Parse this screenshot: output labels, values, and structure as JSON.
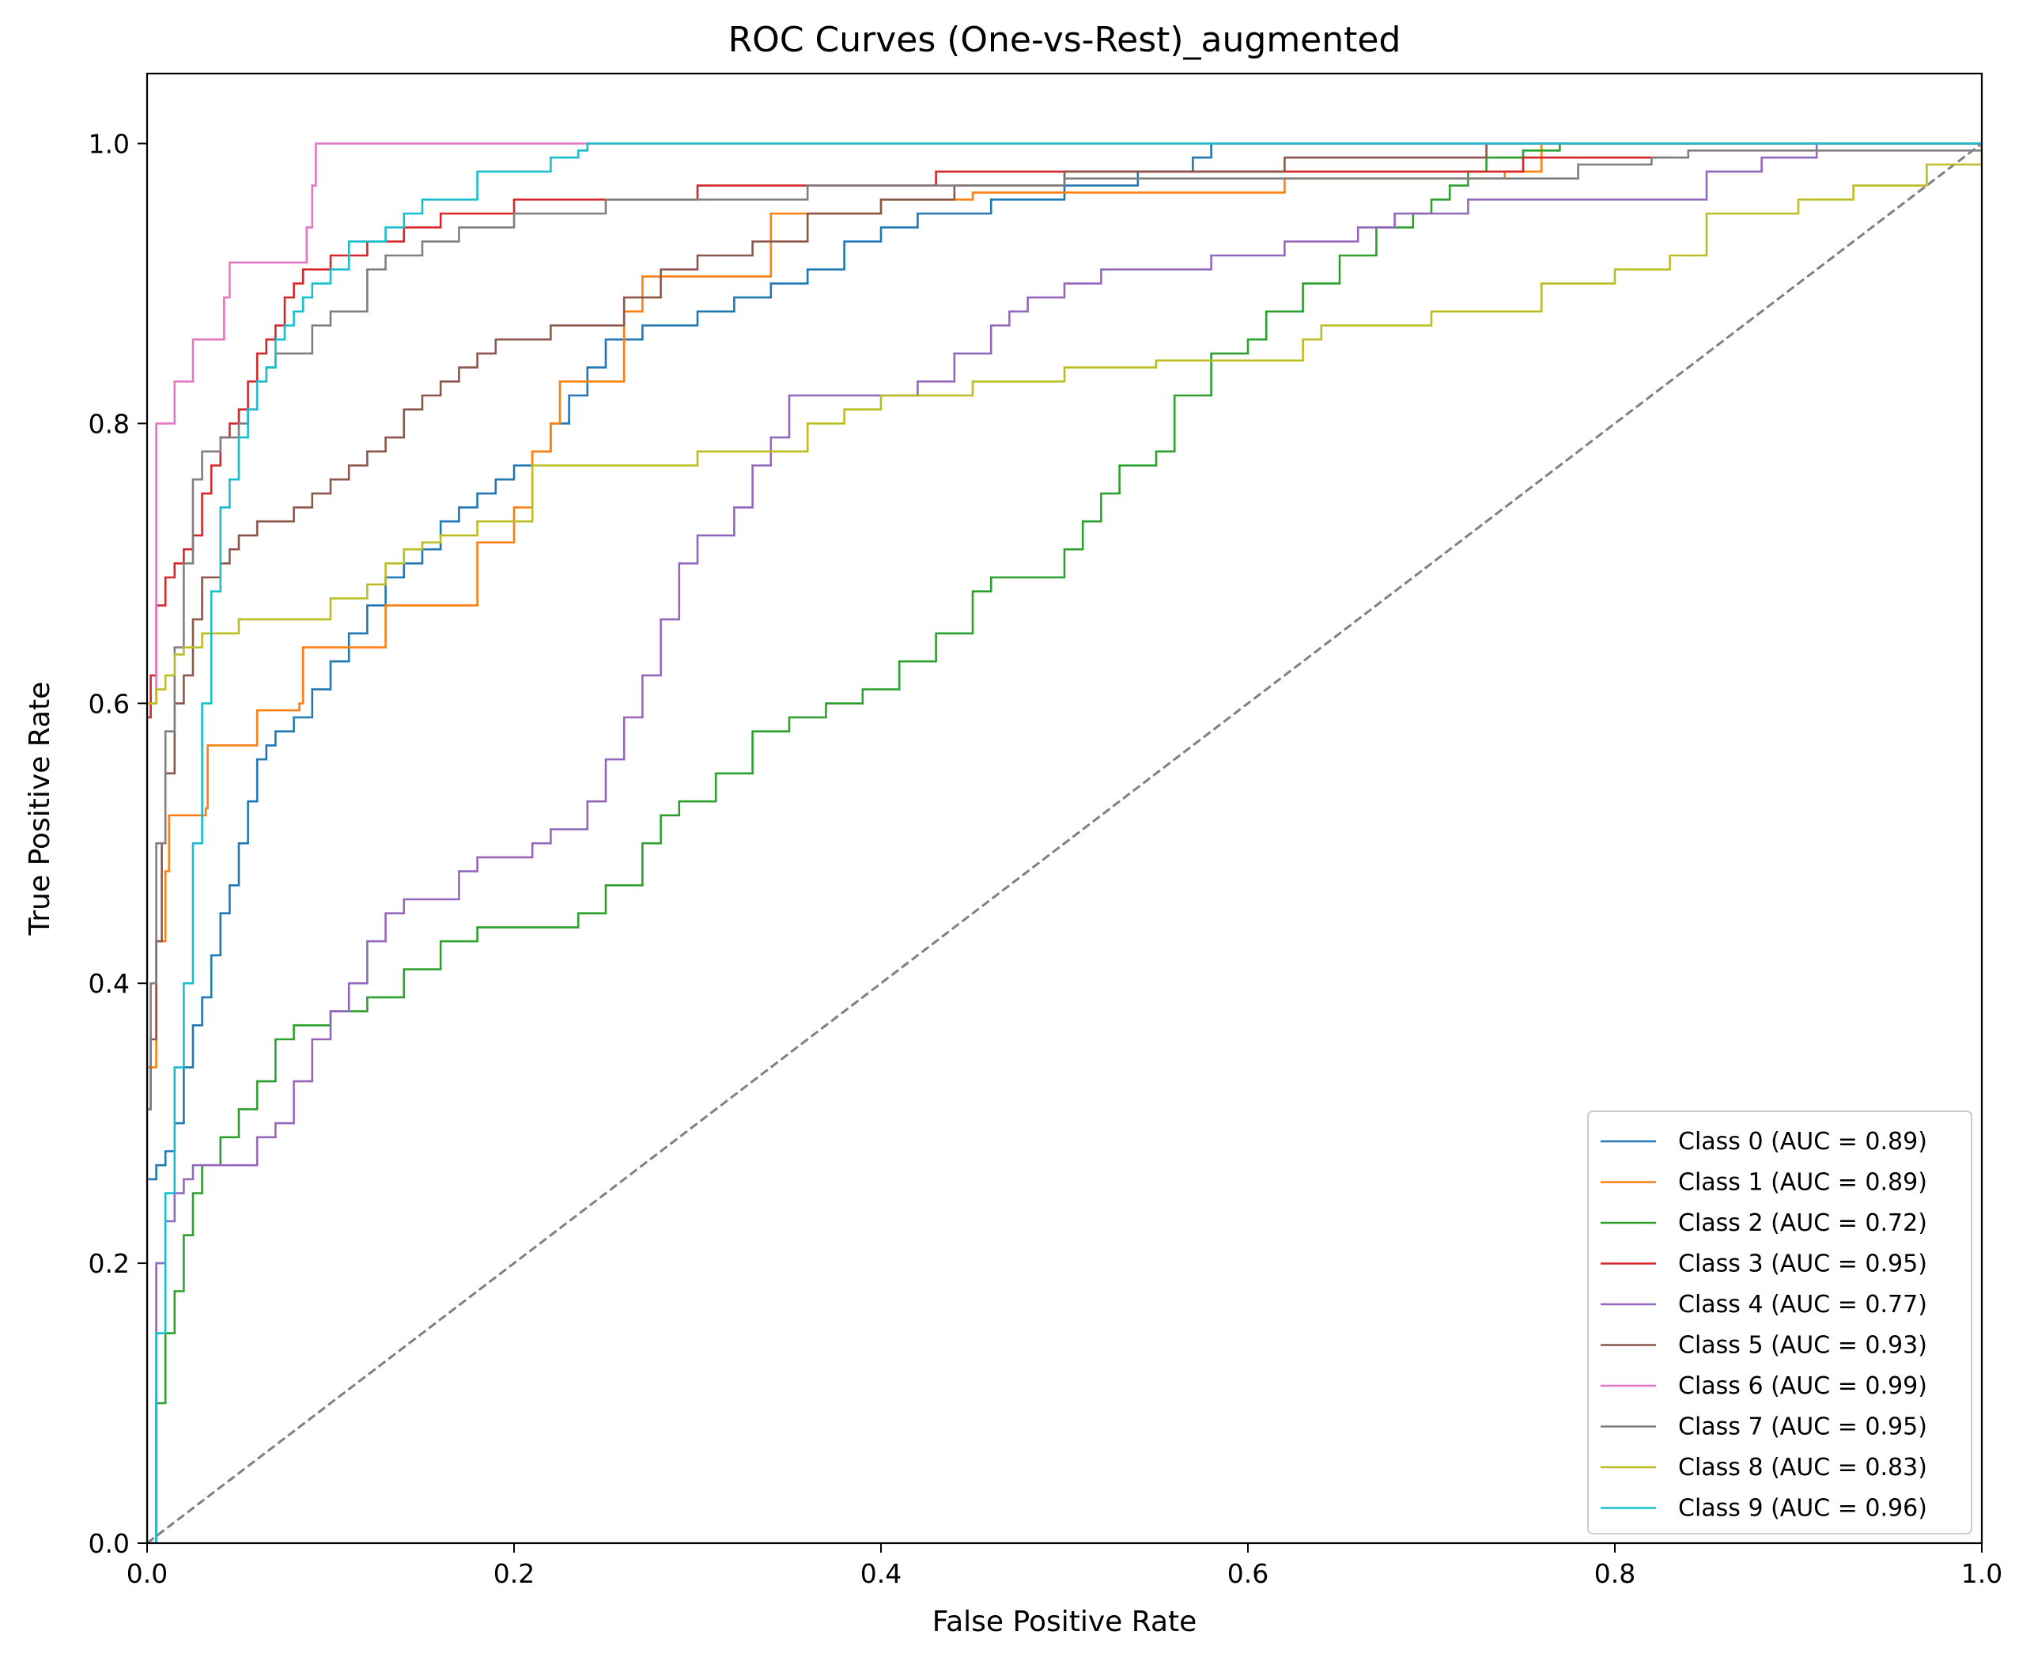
{
  "chart_data": {
    "type": "line",
    "title": "ROC Curves (One-vs-Rest)_augmented",
    "xlabel": "False Positive Rate",
    "ylabel": "True Positive Rate",
    "xlim": [
      0.0,
      1.0
    ],
    "ylim": [
      0.0,
      1.05
    ],
    "xticks": [
      "0.0",
      "0.2",
      "0.4",
      "0.6",
      "0.8",
      "1.0"
    ],
    "yticks": [
      "0.0",
      "0.2",
      "0.4",
      "0.6",
      "0.8",
      "1.0"
    ],
    "grid": false,
    "legend_position": "lower-right",
    "reference_line": {
      "x": [
        0,
        1
      ],
      "y": [
        0,
        1
      ],
      "color": "#808080",
      "style": "dashed"
    },
    "series": [
      {
        "name": "Class 0 (AUC = 0.89)",
        "color": "#1f77b4",
        "x": [
          0,
          0,
          0.005,
          0.01,
          0.015,
          0.02,
          0.025,
          0.03,
          0.035,
          0.04,
          0.045,
          0.05,
          0.055,
          0.06,
          0.065,
          0.07,
          0.08,
          0.09,
          0.1,
          0.11,
          0.12,
          0.13,
          0.14,
          0.15,
          0.16,
          0.17,
          0.18,
          0.19,
          0.2,
          0.21,
          0.22,
          0.23,
          0.24,
          0.25,
          0.26,
          0.27,
          0.28,
          0.3,
          0.32,
          0.34,
          0.36,
          0.38,
          0.4,
          0.42,
          0.44,
          0.46,
          0.5,
          0.54,
          0.57,
          0.58,
          1.0
        ],
        "y": [
          0,
          0.26,
          0.27,
          0.28,
          0.3,
          0.34,
          0.37,
          0.39,
          0.42,
          0.45,
          0.47,
          0.5,
          0.53,
          0.56,
          0.57,
          0.58,
          0.59,
          0.61,
          0.63,
          0.65,
          0.67,
          0.69,
          0.7,
          0.71,
          0.73,
          0.74,
          0.75,
          0.76,
          0.77,
          0.78,
          0.8,
          0.82,
          0.84,
          0.86,
          0.86,
          0.87,
          0.87,
          0.88,
          0.89,
          0.9,
          0.91,
          0.93,
          0.94,
          0.95,
          0.95,
          0.96,
          0.97,
          0.98,
          0.99,
          1.0,
          1.0
        ]
      },
      {
        "name": "Class 1 (AUC = 0.89)",
        "color": "#ff7f0e",
        "x": [
          0,
          0,
          0.005,
          0.01,
          0.012,
          0.015,
          0.032,
          0.033,
          0.055,
          0.06,
          0.083,
          0.085,
          0.13,
          0.13,
          0.175,
          0.18,
          0.2,
          0.21,
          0.22,
          0.225,
          0.26,
          0.27,
          0.33,
          0.34,
          0.4,
          0.45,
          0.61,
          0.62,
          0.74,
          0.76,
          1.0
        ],
        "y": [
          0,
          0.34,
          0.43,
          0.48,
          0.52,
          0.52,
          0.525,
          0.57,
          0.57,
          0.595,
          0.6,
          0.64,
          0.645,
          0.67,
          0.67,
          0.715,
          0.74,
          0.78,
          0.8,
          0.83,
          0.88,
          0.905,
          0.905,
          0.95,
          0.96,
          0.965,
          0.965,
          0.975,
          0.98,
          1.0,
          1.0
        ]
      },
      {
        "name": "Class 2 (AUC = 0.72)",
        "color": "#2ca02c",
        "x": [
          0,
          0.005,
          0.01,
          0.015,
          0.02,
          0.025,
          0.03,
          0.04,
          0.05,
          0.06,
          0.07,
          0.08,
          0.1,
          0.12,
          0.14,
          0.16,
          0.18,
          0.2,
          0.22,
          0.235,
          0.25,
          0.27,
          0.28,
          0.29,
          0.31,
          0.33,
          0.35,
          0.37,
          0.39,
          0.41,
          0.43,
          0.45,
          0.46,
          0.48,
          0.5,
          0.51,
          0.52,
          0.53,
          0.55,
          0.56,
          0.58,
          0.6,
          0.61,
          0.63,
          0.65,
          0.67,
          0.69,
          0.7,
          0.71,
          0.72,
          0.73,
          0.75,
          0.77,
          0.79,
          0.8,
          1.0
        ],
        "y": [
          0,
          0.1,
          0.15,
          0.18,
          0.22,
          0.25,
          0.27,
          0.29,
          0.31,
          0.33,
          0.36,
          0.37,
          0.38,
          0.39,
          0.41,
          0.43,
          0.44,
          0.44,
          0.44,
          0.45,
          0.47,
          0.5,
          0.52,
          0.53,
          0.55,
          0.58,
          0.59,
          0.6,
          0.61,
          0.63,
          0.65,
          0.68,
          0.69,
          0.69,
          0.71,
          0.73,
          0.75,
          0.77,
          0.78,
          0.82,
          0.85,
          0.86,
          0.88,
          0.9,
          0.92,
          0.94,
          0.95,
          0.96,
          0.97,
          0.98,
          0.99,
          0.995,
          1.0,
          1.0,
          1.0,
          1.0
        ]
      },
      {
        "name": "Class 3 (AUC = 0.95)",
        "color": "#d62728",
        "x": [
          0,
          0,
          0.002,
          0.005,
          0.01,
          0.015,
          0.02,
          0.025,
          0.03,
          0.035,
          0.04,
          0.045,
          0.05,
          0.055,
          0.06,
          0.065,
          0.07,
          0.075,
          0.08,
          0.085,
          0.09,
          0.1,
          0.11,
          0.12,
          0.14,
          0.16,
          0.18,
          0.2,
          0.22,
          0.25,
          0.3,
          0.36,
          0.43,
          0.51,
          0.63,
          0.75,
          0.82,
          0.83
        ],
        "y": [
          0,
          0.59,
          0.62,
          0.67,
          0.69,
          0.7,
          0.71,
          0.72,
          0.75,
          0.77,
          0.79,
          0.8,
          0.81,
          0.83,
          0.85,
          0.86,
          0.87,
          0.89,
          0.9,
          0.91,
          0.91,
          0.92,
          0.92,
          0.93,
          0.94,
          0.95,
          0.95,
          0.96,
          0.96,
          0.96,
          0.97,
          0.97,
          0.98,
          0.98,
          0.98,
          0.99,
          0.99,
          0.99
        ]
      },
      {
        "name": "Class 4 (AUC = 0.77)",
        "color": "#9467bd",
        "x": [
          0,
          0.005,
          0.01,
          0.015,
          0.02,
          0.025,
          0.055,
          0.06,
          0.07,
          0.08,
          0.09,
          0.1,
          0.11,
          0.12,
          0.13,
          0.14,
          0.15,
          0.17,
          0.18,
          0.2,
          0.21,
          0.22,
          0.24,
          0.25,
          0.26,
          0.27,
          0.28,
          0.29,
          0.3,
          0.31,
          0.32,
          0.33,
          0.34,
          0.35,
          0.36,
          0.37,
          0.4,
          0.42,
          0.44,
          0.46,
          0.47,
          0.48,
          0.5,
          0.52,
          0.54,
          0.58,
          0.6,
          0.62,
          0.64,
          0.66,
          0.68,
          0.7,
          0.72,
          0.76,
          0.82,
          0.85,
          0.88,
          0.9,
          0.91,
          1.0
        ],
        "y": [
          0,
          0.2,
          0.23,
          0.25,
          0.26,
          0.27,
          0.27,
          0.29,
          0.3,
          0.33,
          0.36,
          0.38,
          0.4,
          0.43,
          0.45,
          0.46,
          0.46,
          0.48,
          0.49,
          0.49,
          0.5,
          0.51,
          0.53,
          0.56,
          0.59,
          0.62,
          0.66,
          0.7,
          0.72,
          0.72,
          0.74,
          0.77,
          0.79,
          0.82,
          0.82,
          0.82,
          0.82,
          0.83,
          0.85,
          0.87,
          0.88,
          0.89,
          0.9,
          0.91,
          0.91,
          0.92,
          0.92,
          0.93,
          0.93,
          0.94,
          0.95,
          0.95,
          0.96,
          0.96,
          0.96,
          0.98,
          0.99,
          0.99,
          1.0,
          1.0
        ]
      },
      {
        "name": "Class 5 (AUC = 0.93)",
        "color": "#8c564b",
        "x": [
          0,
          0,
          0.002,
          0.005,
          0.008,
          0.01,
          0.015,
          0.02,
          0.025,
          0.03,
          0.035,
          0.04,
          0.045,
          0.05,
          0.06,
          0.07,
          0.08,
          0.09,
          0.1,
          0.11,
          0.12,
          0.13,
          0.14,
          0.15,
          0.16,
          0.17,
          0.18,
          0.19,
          0.2,
          0.22,
          0.24,
          0.26,
          0.28,
          0.3,
          0.33,
          0.36,
          0.4,
          0.44,
          0.5,
          0.57,
          0.62,
          0.67,
          0.73,
          0.83,
          1.0
        ],
        "y": [
          0,
          0.31,
          0.36,
          0.43,
          0.5,
          0.55,
          0.6,
          0.62,
          0.66,
          0.69,
          0.69,
          0.7,
          0.71,
          0.72,
          0.73,
          0.73,
          0.74,
          0.75,
          0.76,
          0.77,
          0.78,
          0.79,
          0.81,
          0.82,
          0.83,
          0.84,
          0.85,
          0.86,
          0.86,
          0.87,
          0.87,
          0.89,
          0.91,
          0.92,
          0.93,
          0.95,
          0.96,
          0.97,
          0.98,
          0.98,
          0.99,
          0.99,
          1.0,
          1.0,
          1.0
        ]
      },
      {
        "name": "Class 6 (AUC = 0.99)",
        "color": "#e377c2",
        "x": [
          0,
          0,
          0.005,
          0.01,
          0.015,
          0.02,
          0.025,
          0.04,
          0.042,
          0.045,
          0.085,
          0.087,
          0.09,
          0.092,
          0.1,
          1.0
        ],
        "y": [
          0,
          0.6,
          0.8,
          0.8,
          0.83,
          0.83,
          0.86,
          0.86,
          0.89,
          0.915,
          0.915,
          0.94,
          0.97,
          1.0,
          1.0,
          1.0
        ]
      },
      {
        "name": "Class 7 (AUC = 0.95)",
        "color": "#7f7f7f",
        "x": [
          0,
          0,
          0.002,
          0.005,
          0.01,
          0.015,
          0.02,
          0.025,
          0.03,
          0.04,
          0.05,
          0.055,
          0.06,
          0.065,
          0.07,
          0.08,
          0.09,
          0.1,
          0.11,
          0.12,
          0.13,
          0.15,
          0.17,
          0.2,
          0.25,
          0.3,
          0.36,
          0.4,
          0.5,
          0.6,
          0.7,
          0.78,
          0.82,
          0.84,
          1.0
        ],
        "y": [
          0,
          0.31,
          0.4,
          0.5,
          0.58,
          0.64,
          0.7,
          0.76,
          0.78,
          0.79,
          0.8,
          0.81,
          0.83,
          0.84,
          0.85,
          0.85,
          0.87,
          0.88,
          0.88,
          0.91,
          0.92,
          0.93,
          0.94,
          0.95,
          0.96,
          0.96,
          0.97,
          0.97,
          0.975,
          0.975,
          0.975,
          0.985,
          0.99,
          0.995,
          1.0
        ]
      },
      {
        "name": "Class 8 (AUC = 0.83)",
        "color": "#bcbd22",
        "x": [
          0,
          0,
          0.005,
          0.01,
          0.015,
          0.02,
          0.03,
          0.045,
          0.05,
          0.065,
          0.07,
          0.085,
          0.1,
          0.12,
          0.13,
          0.14,
          0.15,
          0.16,
          0.17,
          0.18,
          0.2,
          0.21,
          0.25,
          0.3,
          0.35,
          0.36,
          0.38,
          0.4,
          0.45,
          0.5,
          0.55,
          0.6,
          0.63,
          0.64,
          0.7,
          0.75,
          0.76,
          0.8,
          0.83,
          0.85,
          0.9,
          0.93,
          0.97,
          1.0
        ],
        "y": [
          0,
          0.6,
          0.61,
          0.62,
          0.635,
          0.64,
          0.65,
          0.65,
          0.66,
          0.66,
          0.66,
          0.66,
          0.675,
          0.685,
          0.7,
          0.71,
          0.715,
          0.72,
          0.72,
          0.73,
          0.73,
          0.77,
          0.77,
          0.78,
          0.78,
          0.8,
          0.81,
          0.82,
          0.83,
          0.84,
          0.845,
          0.845,
          0.86,
          0.87,
          0.88,
          0.88,
          0.9,
          0.91,
          0.92,
          0.95,
          0.96,
          0.97,
          0.985,
          1.0
        ]
      },
      {
        "name": "Class 9 (AUC = 0.96)",
        "color": "#17becf",
        "x": [
          0,
          0.005,
          0.01,
          0.015,
          0.02,
          0.025,
          0.03,
          0.035,
          0.04,
          0.045,
          0.05,
          0.055,
          0.06,
          0.065,
          0.07,
          0.075,
          0.08,
          0.085,
          0.09,
          0.1,
          0.11,
          0.12,
          0.13,
          0.14,
          0.15,
          0.16,
          0.18,
          0.2,
          0.22,
          0.235,
          0.24,
          0.25,
          0.3,
          0.4,
          0.6,
          1.0
        ],
        "y": [
          0,
          0.15,
          0.25,
          0.34,
          0.4,
          0.5,
          0.6,
          0.68,
          0.74,
          0.76,
          0.79,
          0.81,
          0.83,
          0.84,
          0.86,
          0.87,
          0.88,
          0.89,
          0.9,
          0.91,
          0.93,
          0.93,
          0.94,
          0.95,
          0.96,
          0.96,
          0.98,
          0.98,
          0.99,
          0.995,
          1.0,
          1.0,
          1.0,
          1.0,
          1.0,
          1.0
        ]
      }
    ]
  }
}
